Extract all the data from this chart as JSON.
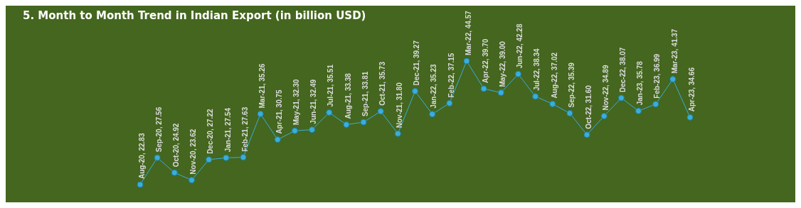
{
  "chart_data": {
    "type": "line",
    "title": "5. Month to Month Trend in Indian Export (in billion USD)",
    "categories": [
      null,
      null,
      null,
      null,
      null,
      null,
      null,
      null,
      null,
      null,
      null,
      null,
      null,
      null,
      null,
      null,
      null,
      null,
      null,
      null,
      null,
      null,
      null,
      null,
      null,
      null,
      null,
      null,
      null,
      null,
      null,
      null,
      null
    ],
    "values": [
      22.83,
      27.56,
      24.92,
      23.62,
      27.22,
      27.54,
      27.63,
      35.26,
      30.75,
      32.3,
      32.49,
      35.51,
      33.38,
      33.81,
      35.73,
      31.8,
      39.27,
      35.23,
      37.15,
      44.57,
      39.7,
      39.0,
      42.28,
      38.34,
      37.02,
      35.39,
      31.6,
      34.89,
      38.07,
      35.78,
      36.99,
      41.37,
      34.66
    ],
    "value_labels": [
      "Aug-20, 22.83",
      "Sep-20, 27.56",
      "Oct-20, 24.92",
      "Nov-20, 23.62",
      "Dec-20, 27.22",
      "Jan-21, 27.54",
      "Feb-21, 27.63",
      "Mar-21, 35.26",
      "Apr-21, 30.75",
      "May-21, 32.30",
      "Jun-21, 32.49",
      "Jul-21, 35.51",
      "Aug-21, 33.38",
      "Sep-21, 33.81",
      "Oct-21, 35.73",
      "Nov-21, 31.80",
      "Dec-21, 39.27",
      "Jan-22, 35.23",
      "Feb-22, 37.15",
      "Mar-22, 44.57",
      "Apr-22, 39.70",
      "May-22, 39.00",
      "Jun-22, 42.28",
      "Jul-22, 38.34",
      "Aug-22, 37.02",
      "Sep-22, 35.39",
      "Oct-22, 31.60",
      "Nov-22, 34.89",
      "Dec-22, 38.07",
      "Jan-23, 35.78",
      "Feb-23, 36.99",
      "Mar-23, 41.37",
      "Apr-23, 34.66"
    ],
    "color": "#3aaed8",
    "marker": "circle"
  }
}
